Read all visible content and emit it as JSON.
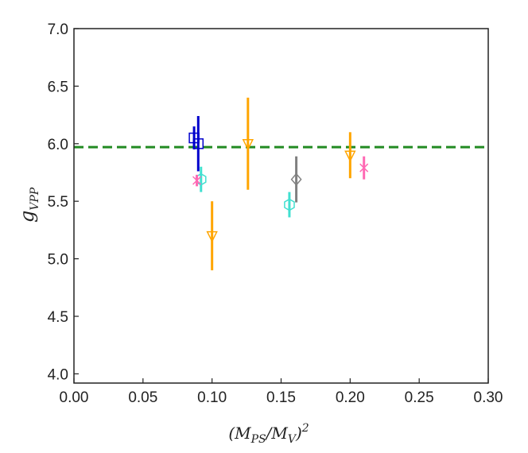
{
  "chart_data": {
    "type": "scatter",
    "title": "",
    "xlabel": {
      "base": "(M",
      "sub1": "PS",
      "mid": "/M",
      "sub2": "V",
      "close": ")",
      "sup": "2"
    },
    "ylabel": {
      "base": "g",
      "sub": "VPP"
    },
    "xlim": [
      0.0,
      0.3
    ],
    "ylim": [
      3.92,
      7.0
    ],
    "xticks": [
      0.0,
      0.05,
      0.1,
      0.15,
      0.2,
      0.25,
      0.3
    ],
    "xtick_labels": [
      "0.00",
      "0.05",
      "0.10",
      "0.15",
      "0.20",
      "0.25",
      "0.30"
    ],
    "yticks": [
      4.0,
      4.5,
      5.0,
      5.5,
      6.0,
      6.5,
      7.0
    ],
    "ytick_labels": [
      "4.0",
      "4.5",
      "5.0",
      "5.5",
      "6.0",
      "6.5",
      "7.0"
    ],
    "grid": false,
    "reference_line": {
      "y": 5.97,
      "color": "#228B22",
      "style": "dashed"
    },
    "series": [
      {
        "marker": "square",
        "color": "#0000CC",
        "points": [
          {
            "x": 0.087,
            "y": 6.05,
            "err": 0.1
          },
          {
            "x": 0.09,
            "y": 6.0,
            "err": 0.24
          }
        ]
      },
      {
        "marker": "triangle-down",
        "color": "#FFA500",
        "points": [
          {
            "x": 0.1,
            "y": 5.2,
            "err": 0.3
          },
          {
            "x": 0.126,
            "y": 6.0,
            "err": 0.4
          },
          {
            "x": 0.2,
            "y": 5.9,
            "err": 0.2
          }
        ]
      },
      {
        "marker": "hexagon",
        "color": "#40E0D0",
        "points": [
          {
            "x": 0.092,
            "y": 5.69,
            "err": 0.11
          },
          {
            "x": 0.156,
            "y": 5.47,
            "err": 0.11
          }
        ]
      },
      {
        "marker": "x",
        "color": "#FF69B4",
        "points": [
          {
            "x": 0.089,
            "y": 5.68,
            "err": 0.05
          },
          {
            "x": 0.21,
            "y": 5.79,
            "err": 0.1
          }
        ]
      },
      {
        "marker": "diamond",
        "color": "#808080",
        "points": [
          {
            "x": 0.161,
            "y": 5.69,
            "err": 0.2
          }
        ]
      }
    ]
  }
}
